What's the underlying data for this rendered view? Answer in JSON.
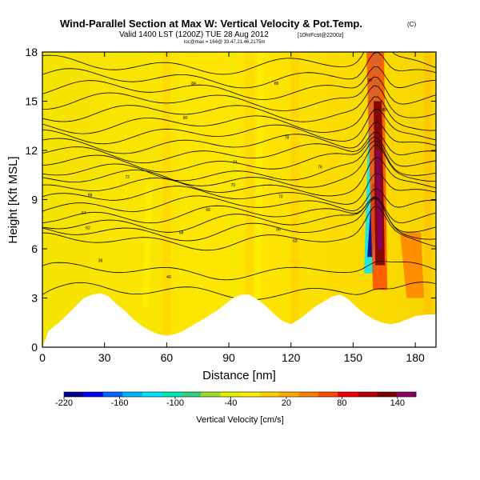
{
  "header": {
    "title": "Wind-Parallel Section at Max W: Vertical Velocity & Pot.Temp.",
    "copyright": "(C)",
    "valid_line": "Valid 1400 LST (1200Z) TUE 28 Aug 2012",
    "valid_suffix": "[10hrFcst@2200z]",
    "location_line": "loc@max = 164@ 33.47,21.46,2175m"
  },
  "chart_data": {
    "type": "heatmap",
    "title": "Wind-Parallel Section at Max W: Vertical Velocity & Pot.Temp.",
    "xlabel": "Distance [nm]",
    "ylabel": "Height [Kft MSL]",
    "xlim": [
      0,
      190
    ],
    "ylim": [
      0,
      18
    ],
    "x_ticks": [
      "0",
      "30",
      "60",
      "90",
      "120",
      "150",
      "180"
    ],
    "y_ticks": [
      "0",
      "3",
      "6",
      "9",
      "12",
      "15",
      "18"
    ],
    "terrain": [
      [
        0,
        0
      ],
      [
        3,
        1
      ],
      [
        8,
        1.5
      ],
      [
        12,
        2
      ],
      [
        16,
        2.5
      ],
      [
        20,
        3
      ],
      [
        24,
        3.2
      ],
      [
        28,
        3.3
      ],
      [
        32,
        3.1
      ],
      [
        36,
        2.6
      ],
      [
        40,
        2.2
      ],
      [
        44,
        1.7
      ],
      [
        48,
        1.3
      ],
      [
        52,
        1.0
      ],
      [
        56,
        0.8
      ],
      [
        60,
        0.7
      ],
      [
        64,
        0.8
      ],
      [
        68,
        1.0
      ],
      [
        72,
        1.3
      ],
      [
        76,
        1.6
      ],
      [
        80,
        1.9
      ],
      [
        84,
        2.2
      ],
      [
        88,
        2.6
      ],
      [
        92,
        3.0
      ],
      [
        96,
        3.2
      ],
      [
        100,
        3.2
      ],
      [
        104,
        2.9
      ],
      [
        108,
        2.5
      ],
      [
        112,
        2.0
      ],
      [
        116,
        1.6
      ],
      [
        120,
        1.4
      ],
      [
        124,
        1.7
      ],
      [
        128,
        2.1
      ],
      [
        132,
        2.5
      ],
      [
        136,
        2.8
      ],
      [
        140,
        3.1
      ],
      [
        144,
        3.2
      ],
      [
        148,
        2.9
      ],
      [
        152,
        2.4
      ],
      [
        156,
        2.0
      ],
      [
        160,
        1.7
      ],
      [
        164,
        1.5
      ],
      [
        168,
        1.4
      ],
      [
        172,
        1.5
      ],
      [
        176,
        1.7
      ],
      [
        180,
        1.9
      ],
      [
        186,
        2.0
      ],
      [
        190,
        2.0
      ]
    ],
    "updrafts": [
      {
        "x": 163,
        "y_from": 3.5,
        "y_to": 18,
        "peak_cms": 150
      },
      {
        "x": 180,
        "y_from": 3,
        "y_to": 7,
        "peak_cms": 70
      }
    ],
    "downdrafts": [
      {
        "x": 158,
        "y_from": 4.5,
        "y_to": 18,
        "min_cms": -200
      },
      {
        "x": 104,
        "y_from": 2.5,
        "y_to": 18,
        "min_cms": -30
      },
      {
        "x": 50,
        "y_from": 2.5,
        "y_to": 10,
        "min_cms": -25
      }
    ],
    "theta_contour_heights": [
      3.2,
      4.5,
      6.4,
      7.0,
      7.5,
      8.0,
      8.6,
      9.2,
      9.7,
      10.2,
      10.6,
      11.2,
      11.8,
      12.4,
      13.0,
      13.6,
      14.3,
      15.0,
      15.7,
      16.4,
      17.2
    ],
    "contour_labels": [
      {
        "text": "36",
        "x": 28,
        "y": 5.3
      },
      {
        "text": "40",
        "x": 61,
        "y": 4.3
      },
      {
        "text": "58",
        "x": 67,
        "y": 7.0
      },
      {
        "text": "62",
        "x": 22,
        "y": 7.3
      },
      {
        "text": "64",
        "x": 20,
        "y": 8.2
      },
      {
        "text": "66",
        "x": 80,
        "y": 8.4
      },
      {
        "text": "68",
        "x": 23,
        "y": 9.3
      },
      {
        "text": "70",
        "x": 92,
        "y": 9.9
      },
      {
        "text": "72",
        "x": 41,
        "y": 10.4
      },
      {
        "text": "74",
        "x": 93,
        "y": 11.3
      },
      {
        "text": "76",
        "x": 134,
        "y": 11.0
      },
      {
        "text": "78",
        "x": 118,
        "y": 12.8
      },
      {
        "text": "80",
        "x": 69,
        "y": 14.0
      },
      {
        "text": "84",
        "x": 73,
        "y": 16.1
      },
      {
        "text": "86",
        "x": 113,
        "y": 16.1
      },
      {
        "text": "88",
        "x": 165,
        "y": 14.5
      },
      {
        "text": "90",
        "x": 158,
        "y": 16.3
      },
      {
        "text": "63",
        "x": 122,
        "y": 6.5
      },
      {
        "text": "66",
        "x": 114,
        "y": 7.2
      },
      {
        "text": "70",
        "x": 115,
        "y": 9.2
      }
    ]
  },
  "colorbar": {
    "label": "Vertical Velocity [cm/s]",
    "min": -220,
    "max": 160,
    "tick_labels": [
      "-220",
      "-160",
      "-100",
      "-40",
      "20",
      "80",
      "140"
    ],
    "tick_values": [
      -220,
      -160,
      -100,
      -40,
      20,
      80,
      140
    ],
    "colors": [
      "#00008b",
      "#0000ff",
      "#0066ff",
      "#00b2ff",
      "#00e5ff",
      "#00e6b8",
      "#33d27f",
      "#9bdc2a",
      "#e6ee00",
      "#ffee00",
      "#ffd000",
      "#ffaa00",
      "#ff8000",
      "#ff4b00",
      "#ee0000",
      "#b40000",
      "#7a0000",
      "#8a0060"
    ]
  }
}
